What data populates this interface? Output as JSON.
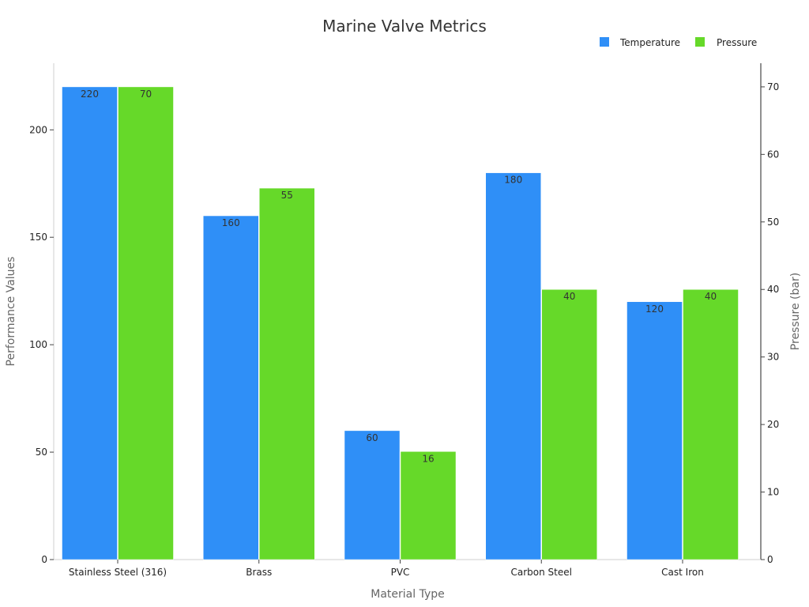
{
  "chart_data": {
    "type": "bar",
    "title": "Marine Valve Metrics",
    "xlabel": "Material Type",
    "ylabel": "Performance Values",
    "y2label": "Pressure (bar)",
    "categories": [
      "Stainless Steel (316)",
      "Brass",
      "PVC",
      "Carbon Steel",
      "Cast Iron"
    ],
    "series": [
      {
        "name": "Temperature",
        "axis": "left",
        "color": "#2f8ff7",
        "values": [
          220,
          160,
          60,
          180,
          120
        ]
      },
      {
        "name": "Pressure",
        "axis": "right",
        "color": "#66d929",
        "values": [
          70,
          55,
          16,
          40,
          40
        ]
      }
    ],
    "ylim": [
      0,
      231
    ],
    "y2lim": [
      0,
      73.5
    ],
    "yticks": [
      0,
      50,
      100,
      150,
      200
    ],
    "y2ticks": [
      0,
      10,
      20,
      30,
      40,
      50,
      60,
      70
    ],
    "legend_position": "top-right",
    "grid": false
  }
}
